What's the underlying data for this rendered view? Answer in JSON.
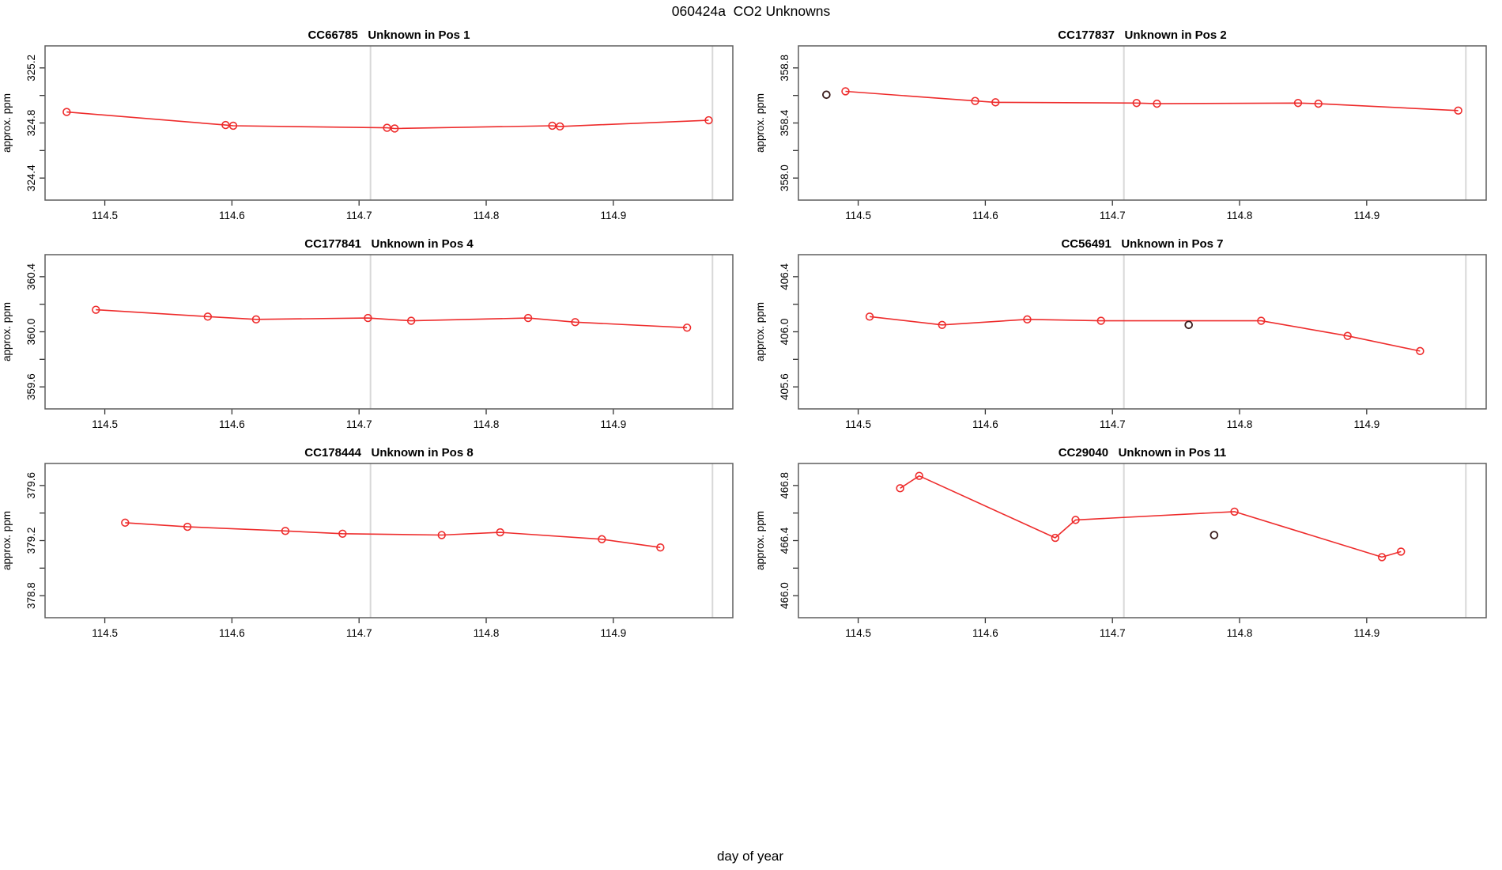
{
  "figure": {
    "title": "060424a  CO2 Unknowns",
    "xlabel": "day of year"
  },
  "colors": {
    "series": "#ee2c2c",
    "outlier_point": "#3a1c1c",
    "grid": "#d8d8d8",
    "border": "#5e5e5e",
    "tick": "#333333",
    "text": "#000000",
    "background": "#ffffff"
  },
  "chart_data": [
    {
      "type": "line",
      "title_id": "CC66785",
      "title_desc": "Unknown in Pos 1",
      "ylabel": "approx. ppm",
      "xlim": [
        114.453,
        114.994
      ],
      "ylim": [
        324.24,
        325.36
      ],
      "xticks": [
        {
          "v": 114.5,
          "label": "114.5"
        },
        {
          "v": 114.6,
          "label": "114.6"
        },
        {
          "v": 114.7,
          "label": "114.7"
        },
        {
          "v": 114.8,
          "label": "114.8"
        },
        {
          "v": 114.9,
          "label": "114.9"
        }
      ],
      "yticks": [
        {
          "v": 324.4,
          "label": "324.4"
        },
        {
          "v": 324.6,
          "label": ""
        },
        {
          "v": 324.8,
          "label": "324.8"
        },
        {
          "v": 325.0,
          "label": ""
        },
        {
          "v": 325.2,
          "label": "325.2"
        }
      ],
      "grid_x": [
        114.709,
        114.978
      ],
      "series": [
        {
          "name": "red-line",
          "points": [
            [
              114.47,
              324.88
            ],
            [
              114.595,
              324.785
            ],
            [
              114.601,
              324.78
            ],
            [
              114.722,
              324.765
            ],
            [
              114.728,
              324.76
            ],
            [
              114.852,
              324.78
            ],
            [
              114.858,
              324.775
            ],
            [
              114.975,
              324.82
            ]
          ]
        },
        {
          "name": "black-points",
          "points": []
        }
      ]
    },
    {
      "type": "line",
      "title_id": "CC177837",
      "title_desc": "Unknown in Pos 2",
      "ylabel": "approx. ppm",
      "xlim": [
        114.453,
        114.994
      ],
      "ylim": [
        357.84,
        358.96
      ],
      "xticks": [
        {
          "v": 114.5,
          "label": "114.5"
        },
        {
          "v": 114.6,
          "label": "114.6"
        },
        {
          "v": 114.7,
          "label": "114.7"
        },
        {
          "v": 114.8,
          "label": "114.8"
        },
        {
          "v": 114.9,
          "label": "114.9"
        }
      ],
      "yticks": [
        {
          "v": 358.0,
          "label": "358.0"
        },
        {
          "v": 358.2,
          "label": ""
        },
        {
          "v": 358.4,
          "label": "358.4"
        },
        {
          "v": 358.6,
          "label": ""
        },
        {
          "v": 358.8,
          "label": "358.8"
        }
      ],
      "grid_x": [
        114.709,
        114.978
      ],
      "series": [
        {
          "name": "red-line",
          "points": [
            [
              114.49,
              358.63
            ],
            [
              114.592,
              358.56
            ],
            [
              114.608,
              358.55
            ],
            [
              114.719,
              358.545
            ],
            [
              114.735,
              358.54
            ],
            [
              114.846,
              358.545
            ],
            [
              114.862,
              358.54
            ],
            [
              114.972,
              358.49
            ]
          ]
        },
        {
          "name": "black-points",
          "points": [
            [
              114.475,
              358.605
            ]
          ]
        }
      ]
    },
    {
      "type": "line",
      "title_id": "CC177841",
      "title_desc": "Unknown in Pos 4",
      "ylabel": "approx. ppm",
      "xlim": [
        114.453,
        114.994
      ],
      "ylim": [
        359.44,
        360.56
      ],
      "xticks": [
        {
          "v": 114.5,
          "label": "114.5"
        },
        {
          "v": 114.6,
          "label": "114.6"
        },
        {
          "v": 114.7,
          "label": "114.7"
        },
        {
          "v": 114.8,
          "label": "114.8"
        },
        {
          "v": 114.9,
          "label": "114.9"
        }
      ],
      "yticks": [
        {
          "v": 359.6,
          "label": "359.6"
        },
        {
          "v": 359.8,
          "label": ""
        },
        {
          "v": 360.0,
          "label": "360.0"
        },
        {
          "v": 360.2,
          "label": ""
        },
        {
          "v": 360.4,
          "label": "360.4"
        }
      ],
      "grid_x": [
        114.709,
        114.978
      ],
      "series": [
        {
          "name": "red-line",
          "points": [
            [
              114.493,
              360.16
            ],
            [
              114.581,
              360.11
            ],
            [
              114.619,
              360.09
            ],
            [
              114.707,
              360.1
            ],
            [
              114.741,
              360.08
            ],
            [
              114.833,
              360.1
            ],
            [
              114.87,
              360.07
            ],
            [
              114.958,
              360.03
            ]
          ]
        },
        {
          "name": "black-points",
          "points": []
        }
      ]
    },
    {
      "type": "line",
      "title_id": "CC56491",
      "title_desc": "Unknown in Pos 7",
      "ylabel": "approx. ppm",
      "xlim": [
        114.453,
        114.994
      ],
      "ylim": [
        405.44,
        406.56
      ],
      "xticks": [
        {
          "v": 114.5,
          "label": "114.5"
        },
        {
          "v": 114.6,
          "label": "114.6"
        },
        {
          "v": 114.7,
          "label": "114.7"
        },
        {
          "v": 114.8,
          "label": "114.8"
        },
        {
          "v": 114.9,
          "label": "114.9"
        }
      ],
      "yticks": [
        {
          "v": 405.6,
          "label": "405.6"
        },
        {
          "v": 405.8,
          "label": ""
        },
        {
          "v": 406.0,
          "label": "406.0"
        },
        {
          "v": 406.2,
          "label": ""
        },
        {
          "v": 406.4,
          "label": "406.4"
        }
      ],
      "grid_x": [
        114.709,
        114.978
      ],
      "series": [
        {
          "name": "red-line",
          "points": [
            [
              114.509,
              406.11
            ],
            [
              114.566,
              406.05
            ],
            [
              114.633,
              406.09
            ],
            [
              114.691,
              406.08
            ],
            [
              114.817,
              406.08
            ],
            [
              114.885,
              405.97
            ],
            [
              114.942,
              405.86
            ]
          ]
        },
        {
          "name": "black-points",
          "points": [
            [
              114.76,
              406.05
            ]
          ]
        }
      ]
    },
    {
      "type": "line",
      "title_id": "CC178444",
      "title_desc": "Unknown in Pos 8",
      "ylabel": "approx. ppm",
      "xlim": [
        114.453,
        114.994
      ],
      "ylim": [
        378.64,
        379.76
      ],
      "xticks": [
        {
          "v": 114.5,
          "label": "114.5"
        },
        {
          "v": 114.6,
          "label": "114.6"
        },
        {
          "v": 114.7,
          "label": "114.7"
        },
        {
          "v": 114.8,
          "label": "114.8"
        },
        {
          "v": 114.9,
          "label": "114.9"
        }
      ],
      "yticks": [
        {
          "v": 378.8,
          "label": "378.8"
        },
        {
          "v": 379.0,
          "label": ""
        },
        {
          "v": 379.2,
          "label": "379.2"
        },
        {
          "v": 379.4,
          "label": ""
        },
        {
          "v": 379.6,
          "label": "379.6"
        }
      ],
      "grid_x": [
        114.709,
        114.978
      ],
      "series": [
        {
          "name": "red-line",
          "points": [
            [
              114.516,
              379.33
            ],
            [
              114.565,
              379.3
            ],
            [
              114.642,
              379.27
            ],
            [
              114.687,
              379.25
            ],
            [
              114.765,
              379.24
            ],
            [
              114.811,
              379.26
            ],
            [
              114.891,
              379.21
            ],
            [
              114.937,
              379.15
            ]
          ]
        },
        {
          "name": "black-points",
          "points": []
        }
      ]
    },
    {
      "type": "line",
      "title_id": "CC29040",
      "title_desc": "Unknown in Pos 11",
      "ylabel": "approx. ppm",
      "xlim": [
        114.453,
        114.994
      ],
      "ylim": [
        465.84,
        466.96
      ],
      "xticks": [
        {
          "v": 114.5,
          "label": "114.5"
        },
        {
          "v": 114.6,
          "label": "114.6"
        },
        {
          "v": 114.7,
          "label": "114.7"
        },
        {
          "v": 114.8,
          "label": "114.8"
        },
        {
          "v": 114.9,
          "label": "114.9"
        }
      ],
      "yticks": [
        {
          "v": 466.0,
          "label": "466.0"
        },
        {
          "v": 466.2,
          "label": ""
        },
        {
          "v": 466.4,
          "label": "466.4"
        },
        {
          "v": 466.6,
          "label": ""
        },
        {
          "v": 466.8,
          "label": "466.8"
        }
      ],
      "grid_x": [
        114.709,
        114.978
      ],
      "series": [
        {
          "name": "red-line",
          "points": [
            [
              114.533,
              466.78
            ],
            [
              114.548,
              466.87
            ],
            [
              114.655,
              466.42
            ],
            [
              114.671,
              466.55
            ],
            [
              114.796,
              466.61
            ],
            [
              114.912,
              466.28
            ],
            [
              114.927,
              466.32
            ]
          ]
        },
        {
          "name": "black-points",
          "points": [
            [
              114.78,
              466.44
            ]
          ]
        }
      ]
    }
  ]
}
